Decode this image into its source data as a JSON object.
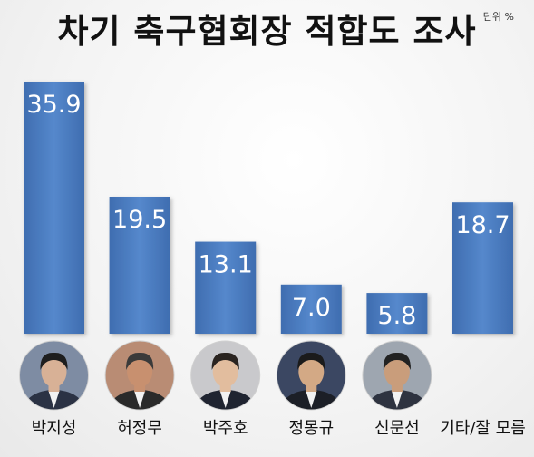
{
  "unit_label": "단위 %",
  "chart_data": {
    "type": "bar",
    "title": "차기 축구협회장 적합도 조사",
    "categories": [
      "박지성",
      "허정무",
      "박주호",
      "정몽규",
      "신문선",
      "기타/잘 모름"
    ],
    "values": [
      35.9,
      19.5,
      13.1,
      7.0,
      5.8,
      18.7
    ],
    "value_labels": [
      "35.9",
      "19.5",
      "13.1",
      "7.0",
      "5.8",
      "18.7"
    ],
    "ylim": [
      0,
      35.9
    ],
    "grid": false,
    "legend": "none",
    "bar_color": "#4a7cc0"
  },
  "portraits": [
    {
      "category": "박지성",
      "bg": "#7e8ca3",
      "face": "#d8b196",
      "hair": "#1e1e1e",
      "suit": "#2b3244"
    },
    {
      "category": "허정무",
      "bg": "#b98c74",
      "face": "#c8906f",
      "hair": "#3a3a3a",
      "suit": "#2a2a2a"
    },
    {
      "category": "박주호",
      "bg": "#c9c9cc",
      "face": "#e2bd9e",
      "hair": "#2a2420",
      "suit": "#1f2430"
    },
    {
      "category": "정몽규",
      "bg": "#3b4762",
      "face": "#d3a985",
      "hair": "#1b1b1b",
      "suit": "#1c1f27"
    },
    {
      "category": "신문선",
      "bg": "#9ea6b0",
      "face": "#c99d7b",
      "hair": "#222222",
      "suit": "#2e3340"
    }
  ]
}
